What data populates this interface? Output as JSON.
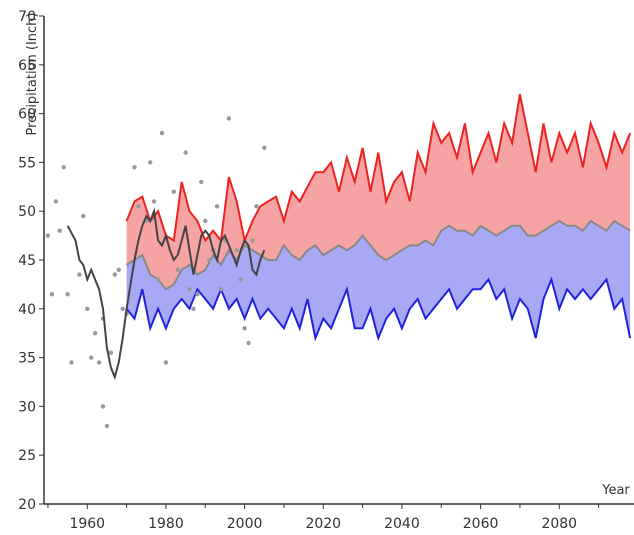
{
  "chart_data": {
    "type": "area",
    "title": "",
    "ylabel": "Precipitation (Inch)",
    "xlabel": "Year",
    "xlim": [
      1949,
      2099
    ],
    "ylim": [
      20,
      70
    ],
    "x_ticks": [
      1960,
      1980,
      2000,
      2020,
      2040,
      2060,
      2080
    ],
    "y_ticks": [
      20,
      25,
      30,
      35,
      40,
      45,
      50,
      55,
      60,
      65,
      70
    ],
    "grid": false,
    "colors": {
      "high": "#ee2222",
      "median": "#888888",
      "low": "#2222dd",
      "upper_band_fill": "#f5a3a3",
      "lower_band_fill": "#a8a8f5",
      "observed": "#444444",
      "scatter": "#999999"
    },
    "projection_years": [
      1970,
      1972,
      1974,
      1976,
      1978,
      1980,
      1982,
      1984,
      1986,
      1988,
      1990,
      1992,
      1994,
      1996,
      1998,
      2000,
      2002,
      2004,
      2006,
      2008,
      2010,
      2012,
      2014,
      2016,
      2018,
      2020,
      2022,
      2024,
      2026,
      2028,
      2030,
      2032,
      2034,
      2036,
      2038,
      2040,
      2042,
      2044,
      2046,
      2048,
      2050,
      2052,
      2054,
      2056,
      2058,
      2060,
      2062,
      2064,
      2066,
      2068,
      2070,
      2072,
      2074,
      2076,
      2078,
      2080,
      2082,
      2084,
      2086,
      2088,
      2090,
      2092,
      2094,
      2096,
      2098
    ],
    "series": [
      {
        "values": [
          49,
          51,
          51.5,
          49,
          50,
          47.5,
          47,
          53,
          50,
          49,
          47,
          48,
          47,
          53.5,
          51,
          47,
          49,
          50.5,
          51,
          51.5,
          49,
          52,
          51,
          52.5,
          54,
          54,
          55,
          52,
          55.5,
          53,
          56.5,
          52,
          56,
          51,
          53,
          54,
          51,
          56,
          54,
          59,
          57,
          58,
          55.5,
          59,
          54,
          56,
          58,
          55,
          59,
          57,
          62,
          58,
          54,
          59,
          55,
          58,
          56,
          58,
          54.5,
          59,
          57,
          54.5,
          58,
          56,
          58
        ]
      },
      {
        "values": [
          44.5,
          45,
          45.5,
          43.5,
          43,
          42,
          42.5,
          44,
          44.5,
          43.5,
          44,
          45.5,
          44.5,
          46,
          45,
          46.5,
          46,
          45.5,
          45,
          45,
          46.5,
          45.5,
          45,
          46,
          46.5,
          45.5,
          46,
          46.5,
          46,
          46.5,
          47.5,
          46.5,
          45.5,
          45,
          45.5,
          46,
          46.5,
          46.5,
          47,
          46.5,
          48,
          48.5,
          48,
          48,
          47.5,
          48.5,
          48,
          47.5,
          48,
          48.5,
          48.5,
          47.5,
          47.5,
          48,
          48.5,
          49,
          48.5,
          48.5,
          48,
          49,
          48.5,
          48,
          49,
          48.5,
          48
        ]
      },
      {
        "values": [
          40,
          39,
          42,
          38,
          40,
          38,
          40,
          41,
          40,
          42,
          41,
          40,
          42,
          40,
          41,
          39,
          41,
          39,
          40,
          39,
          38,
          40,
          38,
          41,
          37,
          39,
          38,
          40,
          42,
          38,
          38,
          40,
          37,
          39,
          40,
          38,
          40,
          41,
          39,
          40,
          41,
          42,
          40,
          41,
          42,
          42,
          43,
          41,
          42,
          39,
          41,
          40,
          37,
          41,
          43,
          40,
          42,
          41,
          42,
          41,
          42,
          43,
          40,
          41,
          37
        ]
      }
    ],
    "observed_running_mean": {
      "x": [
        1955,
        1957,
        1958,
        1959,
        1960,
        1961,
        1962,
        1963,
        1964,
        1965,
        1966,
        1967,
        1968,
        1969,
        1970,
        1971,
        1972,
        1973,
        1974,
        1975,
        1976,
        1977,
        1978,
        1979,
        1980,
        1981,
        1982,
        1983,
        1984,
        1985,
        1986,
        1987,
        1988,
        1989,
        1990,
        1991,
        1992,
        1993,
        1994,
        1995,
        1996,
        1997,
        1998,
        1999,
        2000,
        2001,
        2002,
        2003,
        2004,
        2005
      ],
      "y": [
        48.5,
        47,
        45,
        44.5,
        43,
        44,
        43,
        42,
        40,
        36,
        34,
        33,
        34.5,
        37,
        40,
        42.5,
        45,
        47,
        48.5,
        49.5,
        49,
        50,
        47,
        46.5,
        47.5,
        46,
        45,
        45.5,
        47,
        48.5,
        46,
        43.5,
        45.5,
        47.5,
        48,
        47.5,
        46,
        45,
        47,
        47.5,
        46.5,
        45.5,
        44.5,
        46,
        47,
        46.5,
        44,
        43.5,
        45,
        46
      ]
    },
    "observed_annual": {
      "x": [
        1950,
        1951,
        1952,
        1953,
        1954,
        1955,
        1956,
        1958,
        1959,
        1960,
        1961,
        1962,
        1963,
        1964,
        1964,
        1965,
        1966,
        1967,
        1968,
        1969,
        1970,
        1972,
        1973,
        1975,
        1976,
        1977,
        1978,
        1979,
        1980,
        1982,
        1983,
        1985,
        1986,
        1987,
        1988,
        1989,
        1990,
        1991,
        1992,
        1993,
        1994,
        1995,
        1996,
        1998,
        1999,
        2000,
        2001,
        2002,
        2003,
        2005
      ],
      "y": [
        47.5,
        41.5,
        51,
        48,
        54.5,
        41.5,
        34.5,
        43.5,
        49.5,
        40,
        35,
        37.5,
        34.5,
        30,
        39,
        28,
        35.5,
        43.5,
        44,
        40,
        39.5,
        54.5,
        50.5,
        49,
        55,
        51,
        43,
        58,
        34.5,
        52,
        44,
        56,
        42,
        40,
        41.5,
        53,
        49,
        45,
        46,
        50.5,
        42,
        47,
        59.5,
        46,
        43,
        38,
        36.5,
        47,
        50.5,
        56.5
      ]
    }
  }
}
